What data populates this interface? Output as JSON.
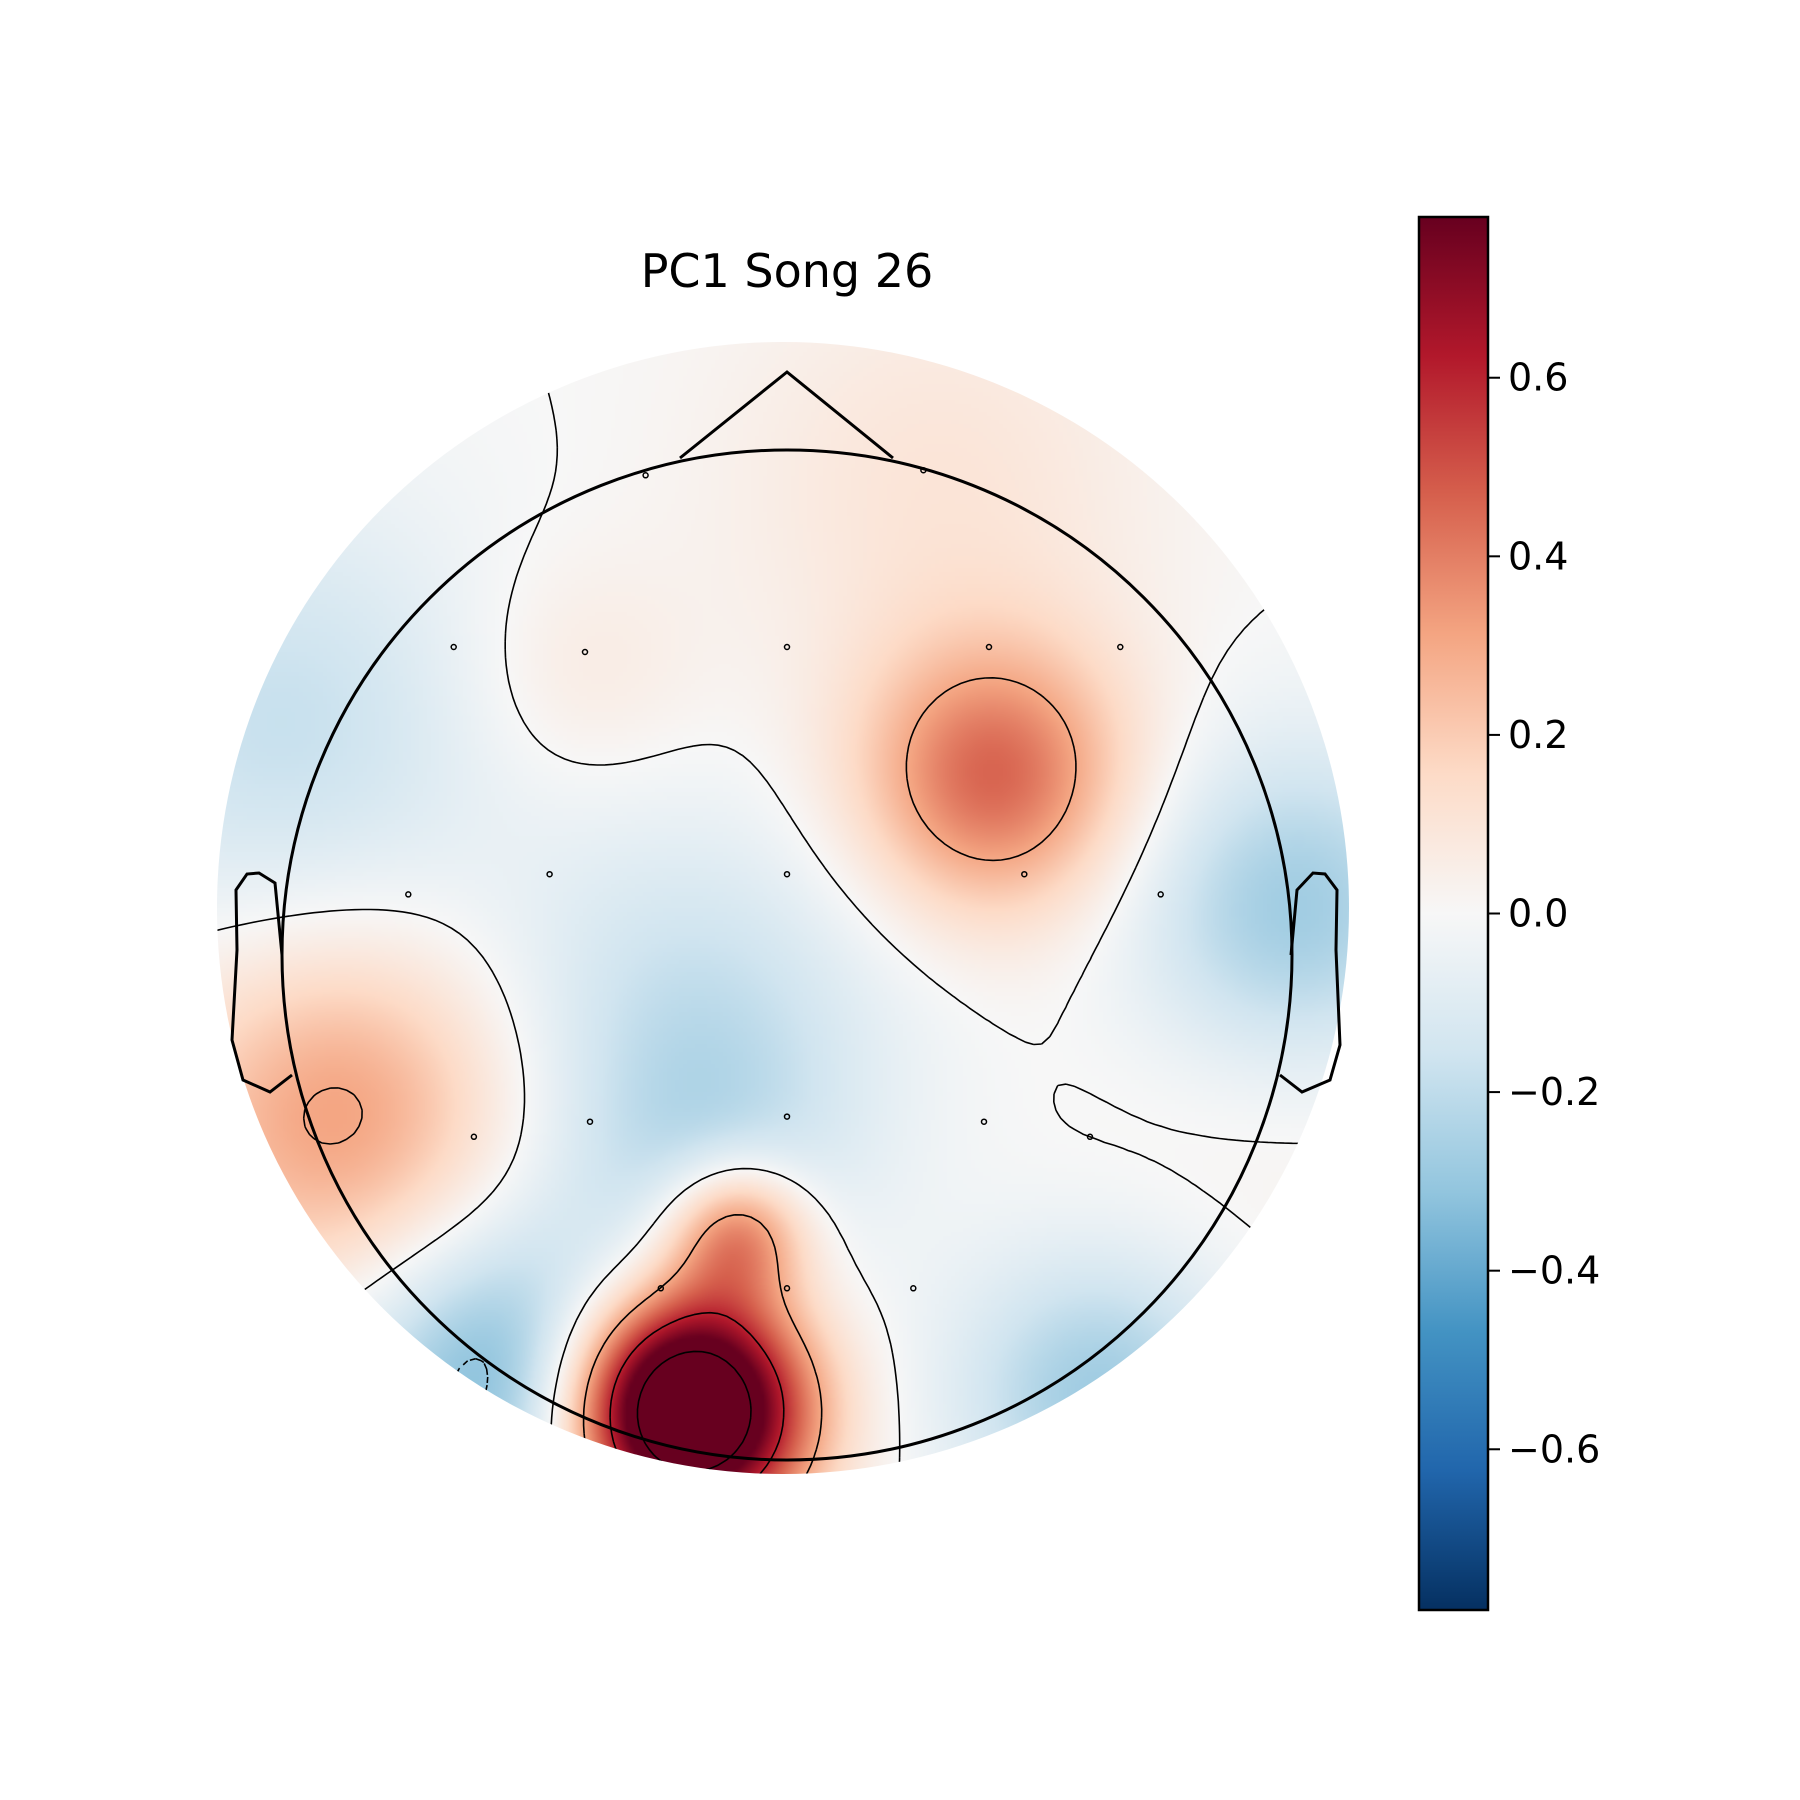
{
  "title": "PC1 Song 26",
  "chart_data": {
    "type": "heatmap",
    "subtype": "eeg-topomap",
    "title": "PC1 Song 26",
    "colormap": "RdBu_r",
    "colorbar": {
      "range": [
        -0.78,
        0.78
      ],
      "ticks": [
        -0.6,
        -0.4,
        -0.2,
        0.0,
        0.2,
        0.4,
        0.6
      ],
      "tick_labels": [
        "−0.6",
        "−0.4",
        "−0.2",
        "0.0",
        "0.2",
        "0.4",
        "0.6"
      ]
    },
    "sources": [
      {
        "x": -0.2,
        "y": -0.9,
        "value": 1.3,
        "sigma": 0.16
      },
      {
        "x": -0.1,
        "y": -0.55,
        "value": 0.45,
        "sigma": 0.1
      },
      {
        "x": 0.41,
        "y": 0.35,
        "value": 0.45,
        "sigma": 0.19
      },
      {
        "x": -0.88,
        "y": -0.32,
        "value": 0.33,
        "sigma": 0.25
      },
      {
        "x": -0.42,
        "y": 0.55,
        "value": 0.08,
        "sigma": 0.17
      },
      {
        "x": 0.3,
        "y": 0.93,
        "value": 0.1,
        "sigma": 0.3
      },
      {
        "x": 0.95,
        "y": -0.25,
        "value": 0.05,
        "sigma": 0.3
      },
      {
        "x": 1.0,
        "y": 0.08,
        "value": -0.3,
        "sigma": 0.23
      },
      {
        "x": -0.56,
        "y": -0.84,
        "value": -0.38,
        "sigma": 0.22
      },
      {
        "x": 0.62,
        "y": -0.87,
        "value": -0.28,
        "sigma": 0.2
      },
      {
        "x": -0.19,
        "y": -0.13,
        "value": -0.18,
        "sigma": 0.28
      },
      {
        "x": -1.0,
        "y": 0.45,
        "value": -0.18,
        "sigma": 0.3
      },
      {
        "x": -0.17,
        "y": -0.42,
        "value": -0.12,
        "sigma": 0.2
      }
    ],
    "sensors": [
      [
        -0.28,
        0.95
      ],
      [
        0.27,
        0.96
      ],
      [
        -0.66,
        0.61
      ],
      [
        -0.4,
        0.6
      ],
      [
        0.0,
        0.61
      ],
      [
        0.4,
        0.61
      ],
      [
        0.66,
        0.61
      ],
      [
        -0.75,
        0.12
      ],
      [
        -0.47,
        0.16
      ],
      [
        0.0,
        0.16
      ],
      [
        0.47,
        0.16
      ],
      [
        0.74,
        0.12
      ],
      [
        -0.62,
        -0.36
      ],
      [
        -0.39,
        -0.33
      ],
      [
        0.0,
        -0.32
      ],
      [
        0.39,
        -0.33
      ],
      [
        0.6,
        -0.36
      ],
      [
        -0.25,
        -0.66
      ],
      [
        0.0,
        -0.66
      ],
      [
        0.25,
        -0.66
      ]
    ]
  }
}
